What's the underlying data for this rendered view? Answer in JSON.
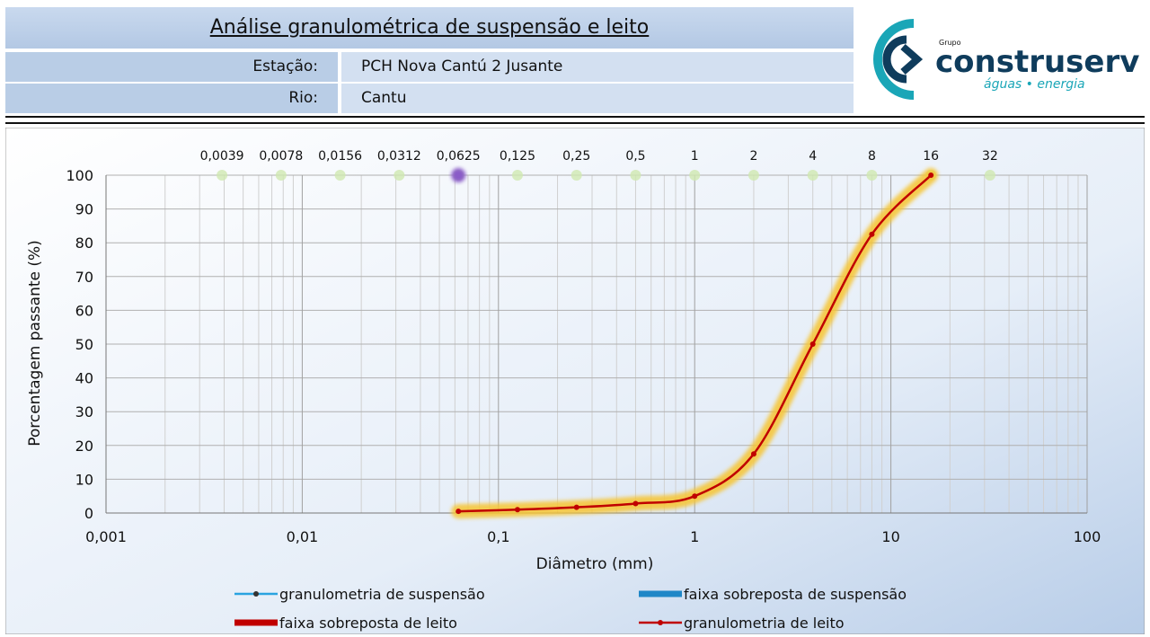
{
  "header": {
    "title": "Análise granulométrica de suspensão e leito",
    "station_label": "Estação:",
    "station": "PCH Nova Cantú 2 Jusante",
    "river_label": "Rio:",
    "river": "Cantu"
  },
  "logo": {
    "group": "Grupo",
    "name": "construserv",
    "tagline": "águas • energia"
  },
  "chart_data": {
    "type": "line",
    "log_x": true,
    "grid": true,
    "minor_grid": true,
    "y_label": "Porcentagem passante (%)",
    "x_label": "Diâmetro  (mm)",
    "xlim": [
      0.001,
      100
    ],
    "ylim": [
      0,
      100
    ],
    "xticks": [
      {
        "value": 0.001,
        "label": "0,001"
      },
      {
        "value": 0.01,
        "label": "0,01"
      },
      {
        "value": 0.1,
        "label": "0,1"
      },
      1,
      10,
      100
    ],
    "yticks": [
      0,
      10,
      20,
      30,
      40,
      50,
      60,
      70,
      80,
      90,
      100
    ],
    "top_ticks": [
      {
        "value": 0.0039,
        "label": "0,0039"
      },
      {
        "value": 0.0078,
        "label": "0,0078"
      },
      {
        "value": 0.0156,
        "label": "0,0156"
      },
      {
        "value": 0.0312,
        "label": "0,0312"
      },
      {
        "value": 0.0625,
        "label": "0,0625"
      },
      {
        "value": 0.125,
        "label": "0,125"
      },
      {
        "value": 0.25,
        "label": "0,25"
      },
      {
        "value": 0.5,
        "label": "0,5"
      },
      1,
      2,
      4,
      8,
      16,
      32
    ],
    "series": [
      {
        "name": "granulometria de suspensão",
        "color": "#29a3e0",
        "x": [
          0.0625
        ],
        "values": [
          100
        ]
      },
      {
        "name": "faixa sobreposta de suspensão",
        "color": "#1f87c7",
        "x": [
          0.0625
        ],
        "values": [
          100
        ]
      },
      {
        "name": "faixa sobreposta de leito",
        "color": "#c00000",
        "x": [
          0.0625,
          0.125,
          0.25,
          0.5,
          1,
          2,
          4,
          8,
          16
        ],
        "values": [
          0.5,
          1,
          1.7,
          2.8,
          5,
          17.5,
          50,
          82.5,
          100
        ]
      },
      {
        "name": "granulometria de leito",
        "color": "#c00000",
        "x": [
          0.0625,
          0.125,
          0.25,
          0.5,
          1,
          2,
          4,
          8,
          16
        ],
        "values": [
          0.5,
          1,
          1.7,
          2.8,
          5,
          17.5,
          50,
          82.5,
          100
        ]
      }
    ]
  }
}
